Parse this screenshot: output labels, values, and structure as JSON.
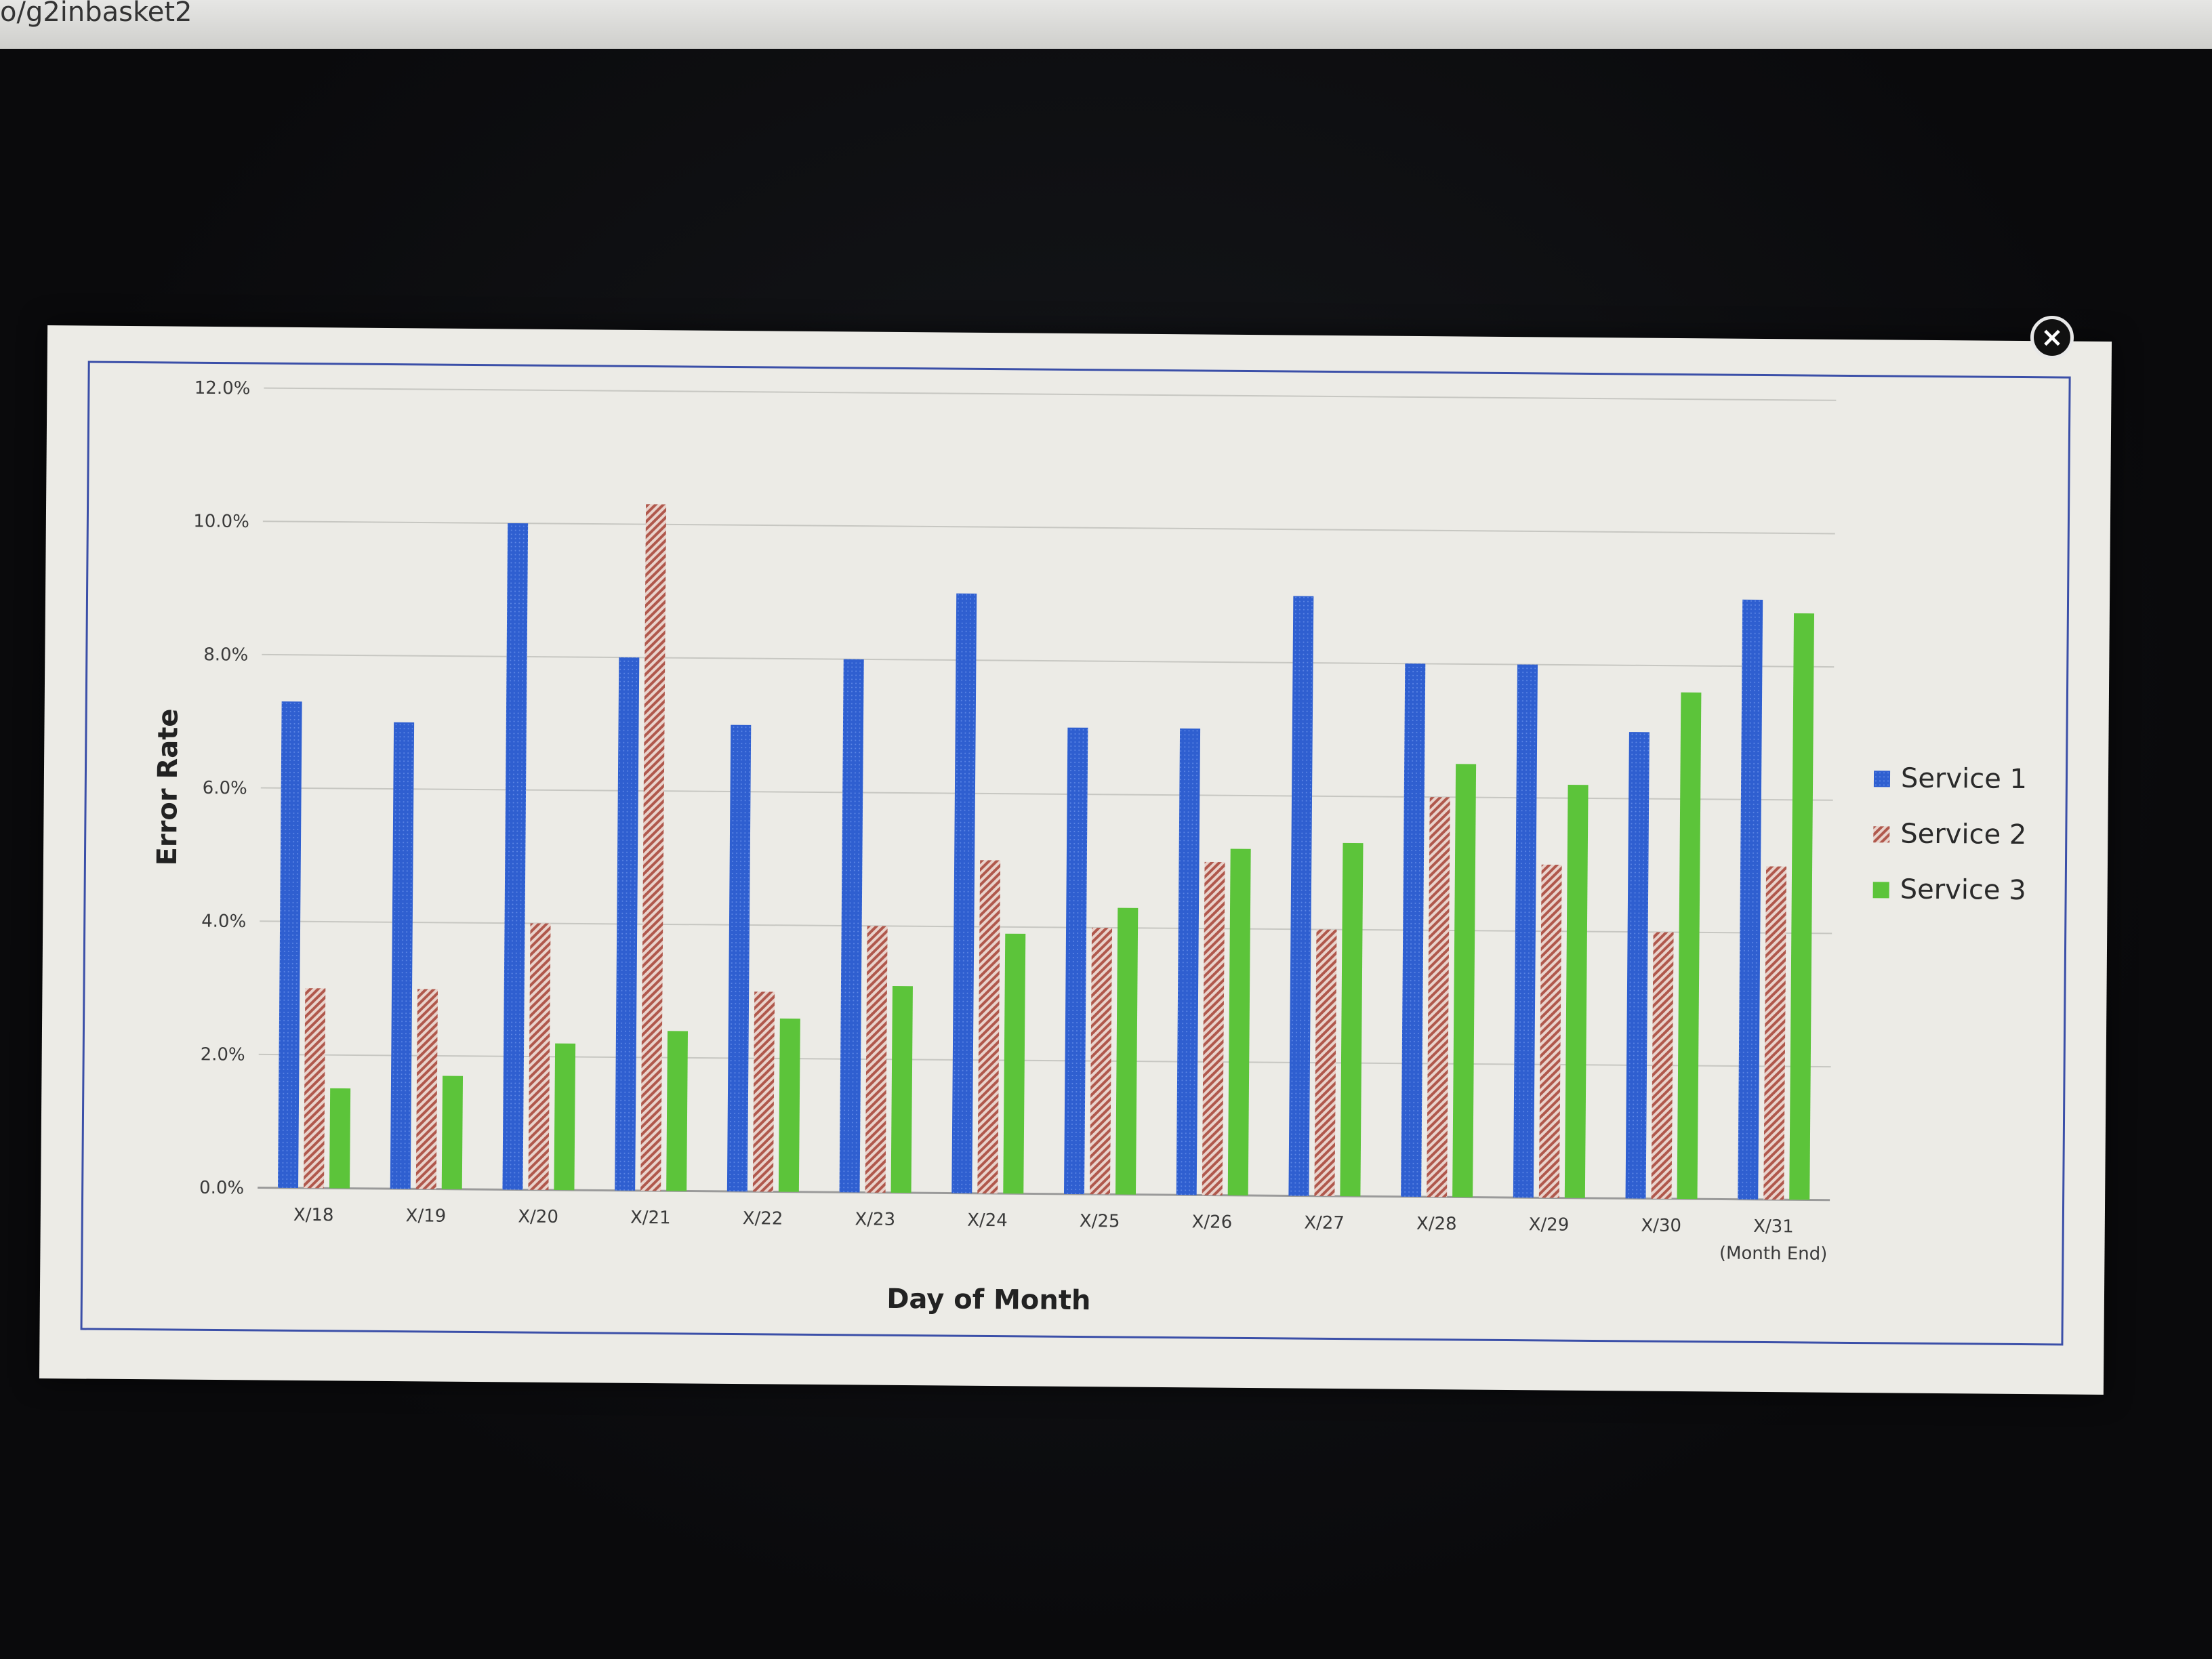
{
  "browser": {
    "url_fragment": "o/g2inbasket2"
  },
  "modal": {
    "close_icon": "close-icon",
    "close_glyph": "×"
  },
  "colors": {
    "service1": "#2f5fd0",
    "service2": "#b86a60",
    "service3": "#5cc43a"
  },
  "chart_data": {
    "type": "bar",
    "title": "",
    "xlabel": "Day of Month",
    "ylabel": "Error Rate",
    "ylim": [
      0,
      12
    ],
    "y_ticks": [
      "0.0%",
      "2.0%",
      "4.0%",
      "6.0%",
      "8.0%",
      "10.0%",
      "12.0%"
    ],
    "grid": true,
    "legend_position": "right",
    "categories": [
      "X/18",
      "X/19",
      "X/20",
      "X/21",
      "X/22",
      "X/23",
      "X/24",
      "X/25",
      "X/26",
      "X/27",
      "X/28",
      "X/29",
      "X/30",
      "X/31"
    ],
    "category_sublabels": [
      "",
      "",
      "",
      "",
      "",
      "",
      "",
      "",
      "",
      "",
      "",
      "",
      "",
      "(Month End)"
    ],
    "series": [
      {
        "name": "Service 1",
        "values": [
          7.3,
          7.0,
          10.0,
          8.0,
          7.0,
          8.0,
          9.0,
          7.0,
          7.0,
          9.0,
          8.0,
          8.0,
          7.0,
          9.0
        ]
      },
      {
        "name": "Service 2",
        "values": [
          3.0,
          3.0,
          4.0,
          10.3,
          3.0,
          4.0,
          5.0,
          4.0,
          5.0,
          4.0,
          6.0,
          5.0,
          4.0,
          5.0
        ]
      },
      {
        "name": "Service 3",
        "values": [
          1.5,
          1.7,
          2.2,
          2.4,
          2.6,
          3.1,
          3.9,
          4.3,
          5.2,
          5.3,
          6.5,
          6.2,
          7.6,
          8.8
        ]
      }
    ]
  }
}
